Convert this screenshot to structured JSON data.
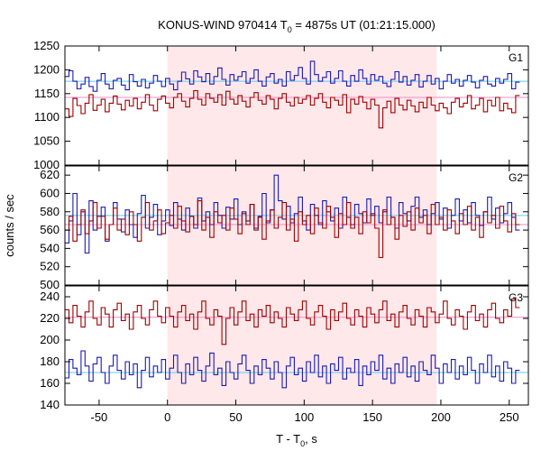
{
  "chart_data": {
    "type": "line",
    "title_main": "KONUS-WIND 970414 T",
    "title_sub": "0",
    "title_rest": " = 4875s UT (01:21:15.000)",
    "xlabel_main": "T - T",
    "xlabel_sub": "0",
    "xlabel_rest": ", s",
    "ylabel": "counts / sec",
    "xlim": [
      -75,
      264
    ],
    "x_ticks": [
      -50,
      0,
      50,
      100,
      150,
      200,
      250
    ],
    "x_tick_labels": [
      "-50",
      "0",
      "50",
      "100",
      "150",
      "200",
      "250"
    ],
    "bin_width": 2.944,
    "highlight_interval": [
      0,
      197
    ],
    "colors": {
      "red_series": "#a00000",
      "blue_series": "#1a1ab4",
      "red_background_line": "#f08cc8",
      "blue_background_line": "#64c8f0",
      "highlight": "#ffe8ea"
    },
    "panels": [
      {
        "label": "G1",
        "ylim": [
          1000,
          1250
        ],
        "y_ticks": [
          1000,
          1050,
          1100,
          1150,
          1200,
          1250
        ],
        "y_tick_labels": [
          "1000",
          "1050",
          "1100",
          "1150",
          "1200",
          "1250"
        ],
        "series": [
          {
            "color_key": "blue_series",
            "background": 1176,
            "values": [
              1186,
              1198,
              1176,
              1160,
              1170,
              1184,
              1165,
              1155,
              1178,
              1192,
              1170,
              1160,
              1178,
              1182,
              1168,
              1158,
              1190,
              1175,
              1166,
              1180,
              1162,
              1172,
              1188,
              1176,
              1165,
              1182,
              1170,
              1158,
              1176,
              1195,
              1181,
              1170,
              1198,
              1185,
              1175,
              1192,
              1170,
              1186,
              1204,
              1180,
              1168,
              1190,
              1178,
              1186,
              1196,
              1172,
              1182,
              1200,
              1176,
              1166,
              1185,
              1192,
              1172,
              1180,
              1166,
              1196,
              1178,
              1188,
              1205,
              1182,
              1170,
              1218,
              1190,
              1176,
              1184,
              1196,
              1172,
              1182,
              1198,
              1176,
              1166,
              1188,
              1176,
              1200,
              1182,
              1170,
              1190,
              1178,
              1186,
              1172,
              1165,
              1180,
              1196,
              1174,
              1186,
              1168,
              1178,
              1190,
              1164,
              1176,
              1188,
              1170,
              1182,
              1160,
              1176,
              1190,
              1172,
              1180,
              1166,
              1178,
              1188,
              1174,
              1162,
              1178,
              1186,
              1170,
              1166,
              1182,
              1172,
              1180,
              1192,
              1160,
              1174
            ]
          },
          {
            "color_key": "red_series",
            "background": 1142,
            "values": [
              1118,
              1102,
              1140,
              1125,
              1108,
              1130,
              1148,
              1115,
              1126,
              1138,
              1112,
              1130,
              1145,
              1128,
              1116,
              1136,
              1124,
              1140,
              1118,
              1132,
              1148,
              1126,
              1114,
              1138,
              1145,
              1130,
              1120,
              1142,
              1150,
              1134,
              1122,
              1140,
              1156,
              1138,
              1126,
              1150,
              1140,
              1132,
              1148,
              1126,
              1155,
              1138,
              1128,
              1146,
              1134,
              1122,
              1142,
              1152,
              1136,
              1128,
              1146,
              1138,
              1118,
              1140,
              1150,
              1132,
              1124,
              1142,
              1130,
              1138,
              1146,
              1126,
              1140,
              1150,
              1132,
              1120,
              1142,
              1136,
              1126,
              1148,
              1110,
              1138,
              1128,
              1144,
              1132,
              1118,
              1138,
              1126,
              1078,
              1120,
              1134,
              1110,
              1140,
              1126,
              1116,
              1136,
              1124,
              1112,
              1132,
              1120,
              1142,
              1126,
              1114,
              1130,
              1120,
              1108,
              1132,
              1140,
              1122,
              1130,
              1146,
              1118,
              1126,
              1140,
              1112,
              1136,
              1124,
              1142,
              1114,
              1130,
              1118,
              1110,
              1146
            ]
          }
        ]
      },
      {
        "label": "G2",
        "ylim": [
          500,
          630
        ],
        "y_ticks": [
          500,
          520,
          540,
          560,
          580,
          600,
          620
        ],
        "y_tick_labels": [
          "500",
          "520",
          "540",
          "560",
          "580",
          "600",
          "620"
        ],
        "series": [
          {
            "color_key": "blue_series",
            "background": 576,
            "values": [
              546,
              570,
              600,
              555,
              580,
              535,
              592,
              560,
              575,
              585,
              548,
              566,
              590,
              572,
              558,
              582,
              566,
              552,
              578,
              598,
              562,
              574,
              588,
              555,
              570,
              582,
              565,
              590,
              572,
              560,
              584,
              575,
              562,
              595,
              570,
              580,
              566,
              590,
              576,
              562,
              585,
              572,
              594,
              566,
              580,
              570,
              588,
              562,
              575,
              600,
              568,
              582,
              620,
              592,
              572,
              586,
              568,
              578,
              596,
              570,
              560,
              588,
              576,
              566,
              592,
              580,
              570,
              584,
              562,
              596,
              574,
              566,
              588,
              578,
              568,
              594,
              576,
              586,
              568,
              580,
              596,
              574,
              562,
              590,
              578,
              570,
              586,
              596,
              574,
              582,
              566,
              578,
              590,
              572,
              584,
              562,
              576,
              594,
              570,
              582,
              568,
              590,
              576,
              565,
              580,
              596,
              572,
              584,
              568,
              578,
              590,
              574,
              560
            ]
          },
          {
            "color_key": "red_series",
            "background": 566,
            "values": [
              560,
              575,
              548,
              566,
              582,
              556,
              570,
              590,
              562,
              575,
              550,
              566,
              584,
              560,
              572,
              555,
              580,
              566,
              548,
              574,
              590,
              560,
              570,
              582,
              556,
              568,
              576,
              562,
              586,
              570,
              558,
              575,
              566,
              592,
              560,
              574,
              552,
              580,
              568,
              576,
              560,
              584,
              572,
              556,
              578,
              566,
              588,
              560,
              574,
              550,
              570,
              582,
              562,
              574,
              590,
              560,
              572,
              548,
              580,
              566,
              576,
              556,
              584,
              568,
              562,
              586,
              574,
              552,
              578,
              566,
              590,
              562,
              574,
              556,
              580,
              568,
              578,
              562,
              530,
              582,
              566,
              574,
              550,
              576,
              564,
              580,
              560,
              584,
              568,
              576,
              556,
              588,
              566,
              574,
              560,
              582,
              570,
              556,
              578,
              566,
              586,
              560,
              574,
              552,
              580,
              568,
              576,
              562,
              586,
              570,
              558,
              578,
              566
            ]
          }
        ]
      },
      {
        "label": "G3",
        "ylim": [
          140,
          250
        ],
        "y_ticks": [
          140,
          160,
          180,
          200,
          220,
          240
        ],
        "y_tick_labels": [
          "140",
          "160",
          "180",
          "200",
          "220",
          "240"
        ],
        "series": [
          {
            "color_key": "red_series",
            "background": 221,
            "values": [
              228,
              216,
              232,
              222,
              212,
              226,
              236,
              220,
              214,
              230,
              224,
              212,
              228,
              234,
              218,
              224,
              210,
              226,
              232,
              220,
              214,
              228,
              236,
              222,
              216,
              230,
              222,
              212,
              226,
              232,
              218,
              224,
              210,
              226,
              236,
              220,
              214,
              228,
              222,
              196,
              220,
              230,
              214,
              226,
              236,
              218,
              224,
              212,
              228,
              222,
              232,
              216,
              226,
              220,
              212,
              230,
              224,
              218,
              228,
              236,
              220,
              214,
              226,
              232,
              222,
              210,
              228,
              218,
              226,
              234,
              220,
              214,
              228,
              222,
              212,
              230,
              224,
              216,
              228,
              236,
              218,
              224,
              212,
              226,
              232,
              220,
              214,
              228,
              222,
              212,
              230,
              226,
              216,
              224,
              236,
              220,
              214,
              228,
              222,
              210,
              226,
              232,
              218,
              224,
              212,
              228,
              234,
              220,
              216,
              228,
              222,
              238,
              230
            ]
          },
          {
            "color_key": "blue_series",
            "background": 170,
            "values": [
              165,
              182,
              174,
              168,
              190,
              176,
              162,
              178,
              184,
              170,
              160,
              176,
              186,
              172,
              164,
              180,
              168,
              178,
              156,
              172,
              184,
              166,
              176,
              170,
              182,
              164,
              174,
              186,
              170,
              160,
              178,
              168,
              184,
              172,
              162,
              176,
              188,
              168,
              174,
              158,
              180,
              170,
              164,
              178,
              186,
              172,
              160,
              176,
              168,
              182,
              174,
              164,
              180,
              170,
              156,
              176,
              184,
              168,
              174,
              162,
              180,
              170,
              186,
              166,
              176,
              160,
              178,
              172,
              184,
              164,
              174,
              170,
              182,
              158,
              176,
              168,
              180,
              172,
              186,
              164,
              174,
              160,
              178,
              170,
              184,
              166,
              176,
              162,
              180,
              172,
              168,
              186,
              174,
              160,
              178,
              170,
              182,
              164,
              176,
              168,
              184,
              172,
              160,
              178,
              170,
              186,
              166,
              176,
              162,
              180,
              174,
              160,
              172
            ]
          }
        ]
      }
    ]
  }
}
